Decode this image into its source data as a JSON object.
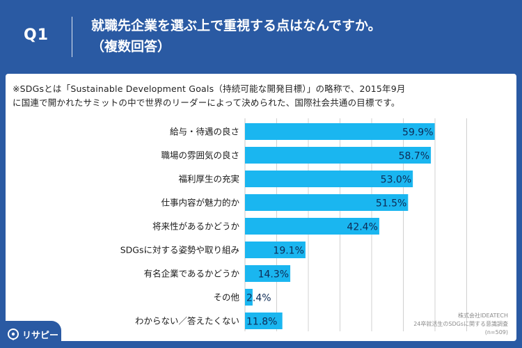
{
  "header": {
    "q_label": "Q1",
    "title_line1": "就職先企業を選ぶ上で重視する点はなんですか。",
    "title_line2": "（複数回答）"
  },
  "note": {
    "line1": "※SDGsとは「Sustainable Development Goals（持続可能な開発目標）」の略称で、2015年9月",
    "line2": "に国連で開かれたサミットの中で世界のリーダーによって決められた、国際社会共通の目標です。"
  },
  "credit": {
    "line1": "株式会社IDEATECH",
    "line2": "24卒就活生のSDGsに関する意識調査",
    "line3": "(n=509)"
  },
  "logo": {
    "text": "リサピー"
  },
  "colors": {
    "background": "#2a5aa3",
    "bar": "#1ab6f0",
    "grid": "#d0d0d0",
    "label_text": "#1a1a1a",
    "value_text": "#0d2b55"
  },
  "chart_data": {
    "type": "bar",
    "orientation": "horizontal",
    "categories": [
      "給与・待遇の良さ",
      "職場の雰囲気の良さ",
      "福利厚生の充実",
      "仕事内容が魅力的か",
      "将来性があるかどうか",
      "SDGsに対する姿勢や取り組み",
      "有名企業であるかどうか",
      "その他",
      "わからない／答えたくない"
    ],
    "values": [
      59.9,
      58.7,
      53.0,
      51.5,
      42.4,
      19.1,
      14.3,
      2.4,
      11.8
    ],
    "value_labels": [
      "59.9%",
      "58.7%",
      "53.0%",
      "51.5%",
      "42.4%",
      "19.1%",
      "14.3%",
      "2.4%",
      "11.8%"
    ],
    "xlim": [
      0,
      70
    ],
    "grid": true,
    "title": "",
    "xlabel": "",
    "ylabel": ""
  }
}
